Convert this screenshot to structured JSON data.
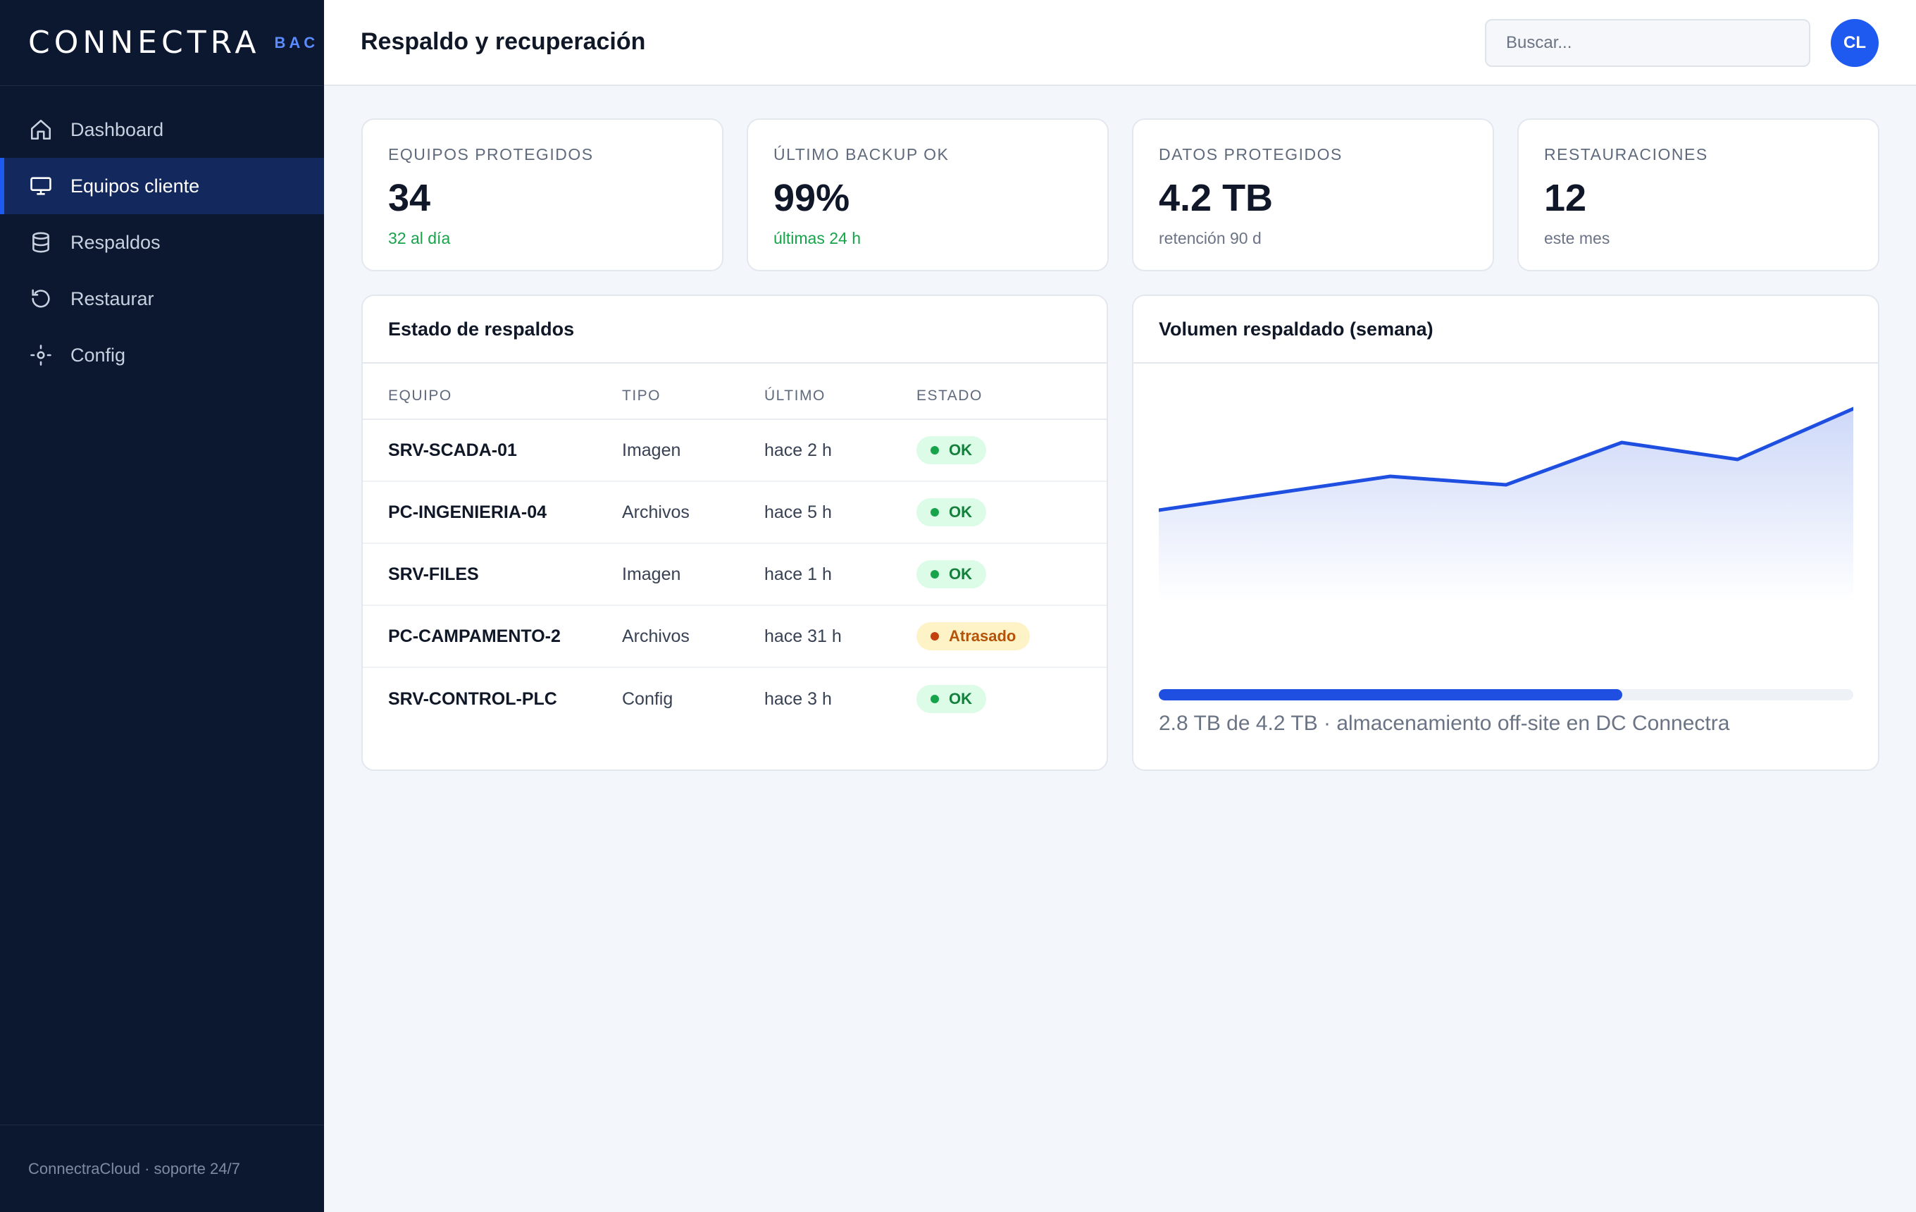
{
  "brand": {
    "name": "CONNECTRA",
    "tag": "BAC"
  },
  "sidebar": {
    "items": [
      {
        "label": "Dashboard",
        "icon": "home-icon",
        "active": false
      },
      {
        "label": "Equipos cliente",
        "icon": "monitor-icon",
        "active": true
      },
      {
        "label": "Respaldos",
        "icon": "database-icon",
        "active": false
      },
      {
        "label": "Restaurar",
        "icon": "restore-icon",
        "active": false
      },
      {
        "label": "Config",
        "icon": "settings-icon",
        "active": false
      }
    ],
    "footer": "ConnectraCloud · soporte 24/7"
  },
  "header": {
    "title": "Respaldo y recuperación",
    "search_placeholder": "Buscar...",
    "avatar_initials": "CL"
  },
  "kpis": [
    {
      "label": "EQUIPOS PROTEGIDOS",
      "value": "34",
      "sub": "32 al día",
      "sub_tone": "green"
    },
    {
      "label": "ÚLTIMO BACKUP OK",
      "value": "99%",
      "sub": "últimas 24 h",
      "sub_tone": "green"
    },
    {
      "label": "DATOS PROTEGIDOS",
      "value": "4.2 TB",
      "sub": "retención 90 d",
      "sub_tone": "grey"
    },
    {
      "label": "RESTAURACIONES",
      "value": "12",
      "sub": "este mes",
      "sub_tone": "grey"
    }
  ],
  "backups": {
    "title": "Estado de respaldos",
    "columns": [
      "EQUIPO",
      "TIPO",
      "ÚLTIMO",
      "ESTADO"
    ],
    "rows": [
      {
        "equipo": "SRV-SCADA-01",
        "tipo": "Imagen",
        "ultimo": "hace 2 h",
        "estado": "OK",
        "status": "ok"
      },
      {
        "equipo": "PC-INGENIERIA-04",
        "tipo": "Archivos",
        "ultimo": "hace 5 h",
        "estado": "OK",
        "status": "ok"
      },
      {
        "equipo": "SRV-FILES",
        "tipo": "Imagen",
        "ultimo": "hace 1 h",
        "estado": "OK",
        "status": "ok"
      },
      {
        "equipo": "PC-CAMPAMENTO-2",
        "tipo": "Archivos",
        "ultimo": "hace 31 h",
        "estado": "Atrasado",
        "status": "warn"
      },
      {
        "equipo": "SRV-CONTROL-PLC",
        "tipo": "Config",
        "ultimo": "hace 3 h",
        "estado": "OK",
        "status": "ok"
      }
    ]
  },
  "volume": {
    "title": "Volumen respaldado (semana)",
    "storage_used_fraction": 0.667,
    "caption": "2.8 TB de 4.2 TB · almacenamiento off-site en DC Connectra"
  },
  "chart_data": {
    "type": "area",
    "title": "Volumen respaldado (semana)",
    "x": [
      1,
      2,
      3,
      4,
      5,
      6,
      7
    ],
    "values": [
      0.3,
      0.4,
      0.5,
      0.45,
      0.7,
      0.6,
      0.9
    ],
    "ylim": [
      0,
      1
    ],
    "grid": false,
    "legend": "none",
    "color": "#1f4fe0"
  },
  "colors": {
    "accent": "#1f5af0",
    "sidebar_bg": "#0c1730",
    "ok": "#16a34a",
    "warn": "#b45309"
  }
}
